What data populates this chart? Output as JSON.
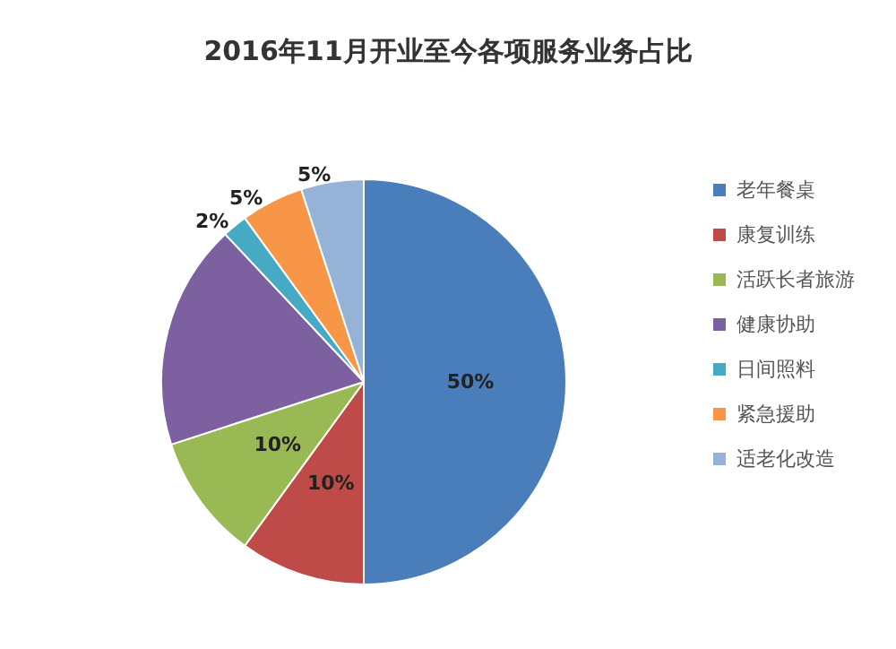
{
  "chart_data": {
    "type": "pie",
    "title": "2016年11月开业至今各项服务业务占比",
    "categories": [
      "老年餐桌",
      "康复训练",
      "活跃长者旅游",
      "健康协助",
      "日间照料",
      "紧急援助",
      "适老化改造"
    ],
    "values": [
      50,
      10,
      10,
      18,
      2,
      5,
      5
    ],
    "colors": [
      "#4a7ebb",
      "#be4b48",
      "#98b954",
      "#7d60a0",
      "#46aac5",
      "#f79646",
      "#95b3d7"
    ],
    "value_labels": [
      "50%",
      "10%",
      "10%",
      null,
      "2%",
      "5%",
      "5%"
    ],
    "legend": "right"
  }
}
